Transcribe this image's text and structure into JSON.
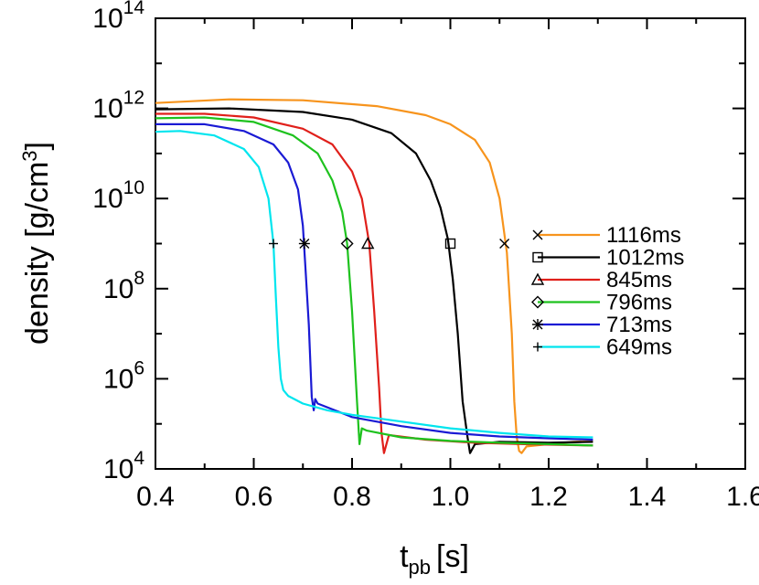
{
  "chart_data": {
    "type": "line",
    "xlabel": "t",
    "xlabel_subscript": "pb",
    "xlabel_unit": "[s]",
    "ylabel": "density [g/cm",
    "ylabel_superscript": "3",
    "ylabel_close": "]",
    "xlim": [
      0.4,
      1.6
    ],
    "ylim": [
      10000,
      100000000000000
    ],
    "yscale": "log",
    "x_ticks": [
      "0.4",
      "0.6",
      "0.8",
      "1.0",
      "1.2",
      "1.4",
      "1.6"
    ],
    "y_ticks": [
      {
        "value": 10000,
        "base": "10",
        "exp": "4"
      },
      {
        "value": 1000000,
        "base": "10",
        "exp": "6"
      },
      {
        "value": 100000000,
        "base": "10",
        "exp": "8"
      },
      {
        "value": 10000000000,
        "base": "10",
        "exp": "10"
      },
      {
        "value": 1000000000000,
        "base": "10",
        "exp": "12"
      },
      {
        "value": 100000000000000,
        "base": "10",
        "exp": "14"
      }
    ],
    "legend_position": "right",
    "marker_density": 1000000000,
    "series": [
      {
        "name": "1116ms",
        "color": "#f7941d",
        "marker": "x",
        "marker_x": 1.11,
        "x": [
          0.4,
          0.55,
          0.7,
          0.85,
          0.95,
          1.0,
          1.05,
          1.08,
          1.1,
          1.115,
          1.125,
          1.13,
          1.135,
          1.14,
          1.145,
          1.155,
          1.2,
          1.25,
          1.29
        ],
        "logy": [
          12.12,
          12.2,
          12.18,
          12.05,
          11.85,
          11.65,
          11.3,
          10.8,
          10.0,
          8.8,
          7.0,
          5.5,
          4.7,
          4.4,
          4.35,
          4.5,
          4.55,
          4.6,
          4.62
        ]
      },
      {
        "name": "1012ms",
        "color": "#000000",
        "marker": "square",
        "marker_x": 1.0,
        "x": [
          0.4,
          0.55,
          0.7,
          0.8,
          0.88,
          0.93,
          0.96,
          0.98,
          0.995,
          1.005,
          1.015,
          1.025,
          1.035,
          1.04,
          1.05,
          1.1,
          1.2,
          1.29
        ],
        "logy": [
          11.98,
          12.0,
          11.92,
          11.75,
          11.45,
          11.0,
          10.4,
          9.8,
          9.1,
          8.2,
          7.0,
          5.5,
          4.7,
          4.35,
          4.55,
          4.6,
          4.58,
          4.6
        ]
      },
      {
        "name": "845ms",
        "color": "#e0201b",
        "marker": "triangle",
        "marker_x": 0.832,
        "x": [
          0.4,
          0.5,
          0.6,
          0.7,
          0.76,
          0.8,
          0.82,
          0.835,
          0.845,
          0.855,
          0.86,
          0.865,
          0.875,
          0.95,
          1.05,
          1.15,
          1.29
        ],
        "logy": [
          11.88,
          11.88,
          11.8,
          11.55,
          11.2,
          10.6,
          10.0,
          9.0,
          7.5,
          5.8,
          4.8,
          4.35,
          4.75,
          4.65,
          4.58,
          4.55,
          4.52
        ]
      },
      {
        "name": "796ms",
        "color": "#1ec21e",
        "marker": "diamond",
        "marker_x": 0.79,
        "x": [
          0.4,
          0.5,
          0.6,
          0.68,
          0.73,
          0.76,
          0.78,
          0.79,
          0.8,
          0.81,
          0.815,
          0.82,
          0.83,
          0.9,
          1.0,
          1.1,
          1.2,
          1.29
        ],
        "logy": [
          11.78,
          11.8,
          11.7,
          11.4,
          11.0,
          10.4,
          9.7,
          9.0,
          7.5,
          5.5,
          4.55,
          4.9,
          4.85,
          4.7,
          4.62,
          4.58,
          4.55,
          4.52
        ]
      },
      {
        "name": "713ms",
        "color": "#1a1ad4",
        "marker": "asterisk",
        "marker_x": 0.703,
        "x": [
          0.4,
          0.5,
          0.58,
          0.64,
          0.67,
          0.69,
          0.7,
          0.705,
          0.712,
          0.718,
          0.722,
          0.725,
          0.73,
          0.8,
          0.9,
          1.0,
          1.1,
          1.2,
          1.29
        ],
        "logy": [
          11.65,
          11.65,
          11.5,
          11.2,
          10.8,
          10.2,
          9.4,
          8.5,
          7.2,
          5.6,
          5.3,
          5.55,
          5.45,
          5.15,
          4.95,
          4.8,
          4.72,
          4.68,
          4.65
        ]
      },
      {
        "name": "649ms",
        "color": "#00e5ee",
        "marker": "plus",
        "marker_x": 0.64,
        "x": [
          0.4,
          0.45,
          0.52,
          0.58,
          0.61,
          0.63,
          0.64,
          0.645,
          0.65,
          0.655,
          0.66,
          0.67,
          0.7,
          0.75,
          0.8,
          0.9,
          1.0,
          1.1,
          1.2,
          1.29
        ],
        "logy": [
          11.48,
          11.5,
          11.4,
          11.1,
          10.7,
          10.0,
          9.0,
          7.8,
          6.7,
          6.0,
          5.75,
          5.62,
          5.45,
          5.3,
          5.2,
          5.05,
          4.9,
          4.8,
          4.72,
          4.7
        ]
      }
    ]
  }
}
